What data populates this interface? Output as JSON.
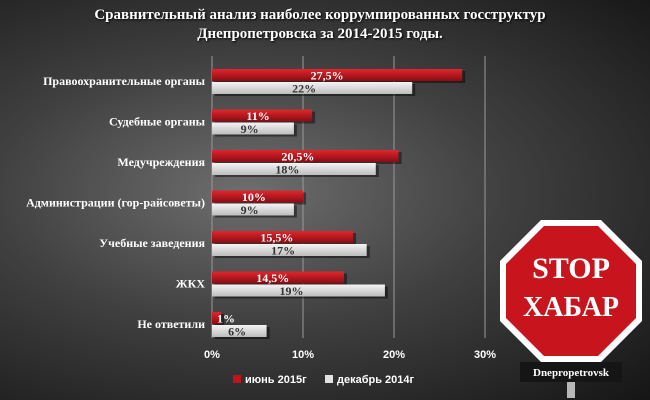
{
  "title": "Сравнительный анализ наиболее коррумпированных госструктур Днепропетровска за 2014-2015 годы.",
  "chart_data": {
    "type": "bar",
    "orientation": "horizontal",
    "categories": [
      "Правоохранительные органы",
      "Судебные органы",
      "Медучреждения",
      "Администрации (гор-райсоветы)",
      "Учебные заведения",
      "ЖКХ",
      "Не ответили"
    ],
    "series": [
      {
        "name": "июнь 2015г",
        "color": "#c0141c",
        "values": [
          27.5,
          11,
          20.5,
          10,
          15.5,
          14.5,
          1
        ],
        "labels": [
          "27,5%",
          "11%",
          "20,5%",
          "10%",
          "15,5%",
          "14,5%",
          "1%"
        ]
      },
      {
        "name": "декабрь 2014г",
        "color": "#e2e2e2",
        "values": [
          22,
          9,
          18,
          9,
          17,
          19,
          6
        ],
        "labels": [
          "22%",
          "9%",
          "18%",
          "9%",
          "17%",
          "19%",
          "6%"
        ]
      }
    ],
    "xlim": [
      0,
      30
    ],
    "xticks": [
      0,
      10,
      20,
      30
    ],
    "xtick_labels": [
      "0%",
      "10%",
      "20%",
      "30%"
    ],
    "grid": true,
    "legend_position": "bottom"
  },
  "sign": {
    "line1": "STOP",
    "line2": "ХАБАР",
    "brand": "Dnepropetrovsk",
    "color": "#c8141c"
  }
}
